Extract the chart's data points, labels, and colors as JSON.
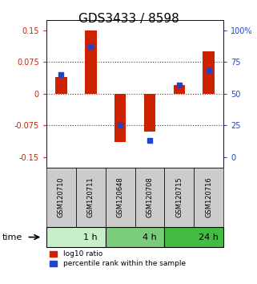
{
  "title": "GDS3433 / 8598",
  "samples": [
    "GSM120710",
    "GSM120711",
    "GSM120648",
    "GSM120708",
    "GSM120715",
    "GSM120716"
  ],
  "log10_ratio": [
    0.04,
    0.15,
    -0.115,
    -0.09,
    0.02,
    0.1
  ],
  "percentile_rank": [
    0.65,
    0.87,
    0.25,
    0.13,
    0.57,
    0.68
  ],
  "groups": [
    {
      "label": "1 h",
      "start": 0,
      "end": 2,
      "color": "#c8f0c8"
    },
    {
      "label": "4 h",
      "start": 2,
      "end": 4,
      "color": "#7acc7a"
    },
    {
      "label": "24 h",
      "start": 4,
      "end": 6,
      "color": "#44bb44"
    }
  ],
  "ylim": [
    -0.175,
    0.175
  ],
  "yticks_left": [
    -0.15,
    -0.075,
    0,
    0.075,
    0.15
  ],
  "yticks_right": [
    0,
    25,
    50,
    75,
    100
  ],
  "bar_color": "#cc2200",
  "dot_color": "#2244cc",
  "hline_color": "#cc2200",
  "dotted_color": "#444444",
  "title_fontsize": 11,
  "tick_fontsize": 7,
  "sample_header_bg": "#cccccc"
}
